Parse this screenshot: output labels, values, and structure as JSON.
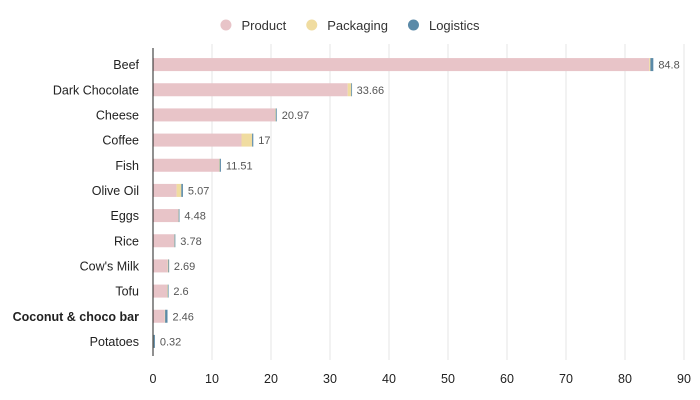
{
  "chart_data": {
    "type": "bar",
    "orientation": "horizontal",
    "stacked": true,
    "legend_position": "top",
    "grid": "vertical",
    "categories": [
      "Beef",
      "Dark Chocolate",
      "Cheese",
      "Coffee",
      "Fish",
      "Olive Oil",
      "Eggs",
      "Rice",
      "Cow's Milk",
      "Tofu",
      "Coconut & choco bar",
      "Potatoes"
    ],
    "highlighted_category": "Coconut & choco bar",
    "series": [
      {
        "name": "Product",
        "color": "#e8c4c8",
        "values": [
          84.1,
          33.0,
          20.7,
          15.0,
          11.2,
          4.0,
          4.3,
          3.6,
          2.5,
          2.4,
          2.0,
          0.1
        ]
      },
      {
        "name": "Packaging",
        "color": "#f0dca0",
        "values": [
          0.2,
          0.6,
          0.1,
          1.8,
          0.1,
          0.8,
          0.05,
          0.05,
          0.1,
          0.1,
          0.06,
          0.02
        ]
      },
      {
        "name": "Logistics",
        "color": "#5b8aa8",
        "values": [
          0.5,
          0.06,
          0.17,
          0.2,
          0.21,
          0.27,
          0.13,
          0.13,
          0.09,
          0.1,
          0.4,
          0.2
        ]
      }
    ],
    "totals": [
      "84.8",
      "33.66",
      "20.97",
      "17",
      "11.51",
      "5.07",
      "4.48",
      "3.78",
      "2.69",
      "2.6",
      "2.46",
      "0.32"
    ],
    "xlim": [
      0,
      90
    ],
    "xticks": [
      "0",
      "10",
      "20",
      "30",
      "40",
      "50",
      "60",
      "70",
      "80",
      "90"
    ],
    "xlabel": "",
    "ylabel": ""
  }
}
